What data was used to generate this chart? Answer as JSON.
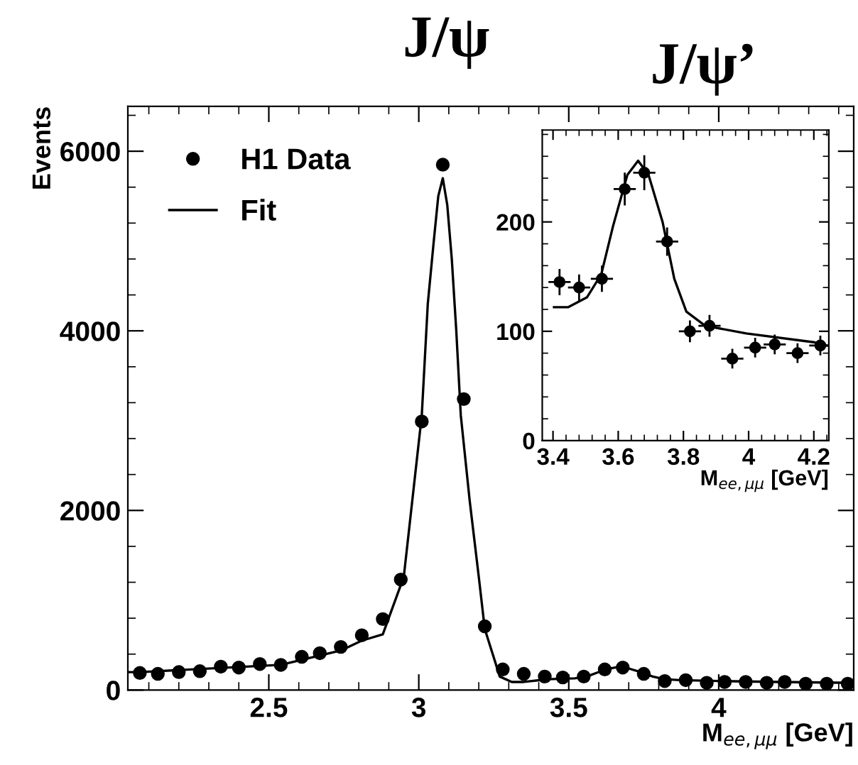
{
  "chart_data": [
    {
      "type": "scatter",
      "xlabel": "M$_{ee,μμ}$ [GeV]",
      "ylabel": "Events",
      "xlim": [
        2.03,
        4.45
      ],
      "ylim": [
        0,
        6500
      ],
      "xticks": [
        2.5,
        3,
        3.5,
        4
      ],
      "yticks": [
        0,
        2000,
        4000,
        6000
      ],
      "legend": "top left",
      "grid": false,
      "annotations": [
        "J/ψ",
        "J/ψ’"
      ],
      "series": [
        {
          "name": "H1 Data",
          "marker": "circle",
          "color": "#000000",
          "x": [
            2.07,
            2.13,
            2.2,
            2.27,
            2.34,
            2.4,
            2.47,
            2.54,
            2.61,
            2.67,
            2.74,
            2.81,
            2.88,
            2.94,
            3.01,
            3.08,
            3.15,
            3.22,
            3.28,
            3.35,
            3.42,
            3.48,
            3.55,
            3.62,
            3.68,
            3.75,
            3.82,
            3.89,
            3.96,
            4.02,
            4.09,
            4.16,
            4.22,
            4.29,
            4.36,
            4.43
          ],
          "values": [
            190,
            180,
            200,
            210,
            260,
            250,
            290,
            280,
            370,
            410,
            480,
            610,
            790,
            1230,
            2990,
            5850,
            3240,
            710,
            230,
            180,
            150,
            140,
            150,
            230,
            250,
            180,
            100,
            110,
            80,
            90,
            90,
            80,
            90,
            70,
            70,
            70
          ]
        },
        {
          "name": "Fit",
          "type": "line",
          "marker": "none",
          "line_style": "solid",
          "color": "#000000",
          "x": [
            2.03,
            2.07,
            2.54,
            2.74,
            2.81,
            2.88,
            2.95,
            3.01,
            3.03,
            3.05,
            3.065,
            3.08,
            3.095,
            3.11,
            3.125,
            3.14,
            3.17,
            3.2,
            3.22,
            3.27,
            3.31,
            3.35,
            3.43,
            3.52,
            3.56,
            3.6,
            3.64,
            3.67,
            3.7,
            3.74,
            3.78,
            3.82,
            3.87,
            4.0,
            4.2,
            4.45
          ],
          "values": [
            200,
            200,
            280,
            440,
            550,
            620,
            1260,
            3060,
            4300,
            5000,
            5500,
            5700,
            5400,
            4800,
            4000,
            3060,
            2100,
            1260,
            680,
            150,
            90,
            90,
            120,
            130,
            150,
            200,
            240,
            260,
            240,
            200,
            150,
            120,
            110,
            100,
            90,
            80
          ]
        }
      ]
    },
    {
      "type": "scatter",
      "xlim": [
        3.367,
        4.246
      ],
      "ylim": [
        0,
        284
      ],
      "xticks": [
        3.4,
        3.6,
        3.8,
        4,
        4.2
      ],
      "yticks": [
        0,
        100,
        200
      ],
      "xlabel": "M$_{ee,μμ}$ [GeV]",
      "grid": false,
      "series": [
        {
          "marker": "circle",
          "color": "#000000",
          "x": [
            3.42,
            3.48,
            3.55,
            3.62,
            3.68,
            3.75,
            3.82,
            3.88,
            3.95,
            4.02,
            4.08,
            4.15,
            4.22
          ],
          "values": [
            145,
            140,
            148,
            230,
            245,
            182,
            100,
            105,
            75,
            85,
            88,
            80,
            87
          ],
          "errors": [
            12,
            12,
            12,
            15,
            16,
            13,
            10,
            10,
            9,
            9,
            9,
            9,
            9
          ],
          "xerrors": [
            0.034,
            0.034,
            0.034,
            0.034,
            0.034,
            0.034,
            0.034,
            0.034,
            0.034,
            0.034,
            0.034,
            0.034,
            0.034
          ]
        },
        {
          "type": "line",
          "marker": "none",
          "line_style": "solid",
          "color": "#000000",
          "x": [
            3.403,
            3.446,
            3.504,
            3.548,
            3.584,
            3.628,
            3.661,
            3.693,
            3.736,
            3.772,
            3.809,
            3.867,
            3.993,
            4.2,
            4.24
          ],
          "values": [
            122,
            122,
            131,
            152,
            196,
            243,
            256,
            243,
            200,
            148,
            118,
            105,
            98,
            90,
            87
          ]
        }
      ]
    }
  ]
}
